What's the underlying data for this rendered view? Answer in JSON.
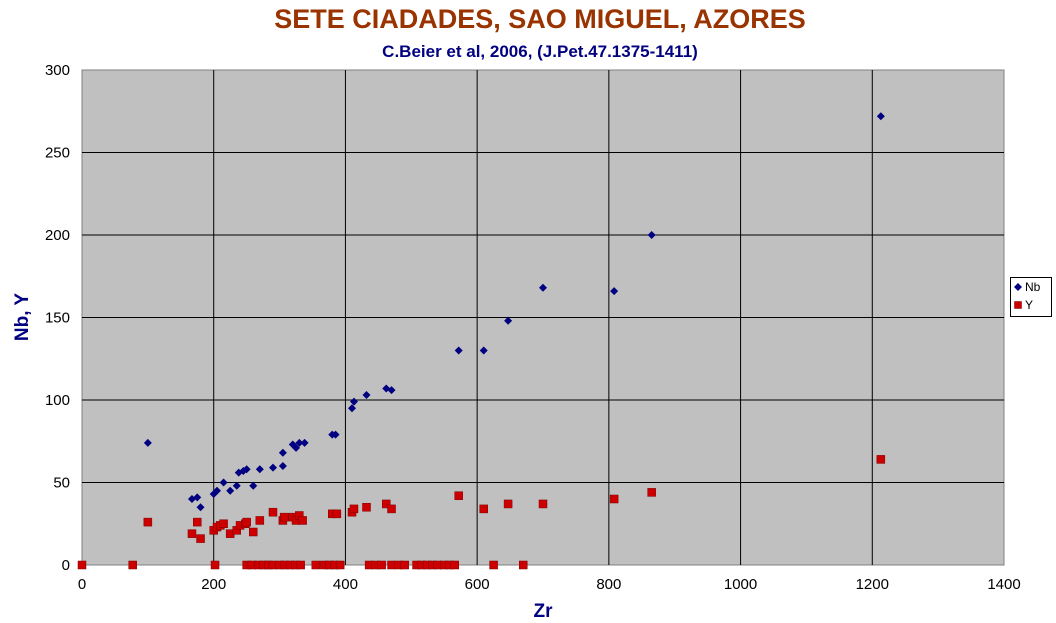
{
  "title": "SETE CIADADES, SAO MIGUEL, AZORES",
  "subtitle": "C.Beier et al, 2006, (J.Pet.47.1375-1411)",
  "chart_data": {
    "type": "scatter",
    "title": "SETE CIADADES, SAO MIGUEL, AZORES",
    "subtitle": "C.Beier et al, 2006, (J.Pet.47.1375-1411)",
    "xlabel": "Zr",
    "ylabel": "Nb, Y",
    "xlim": [
      0,
      1400
    ],
    "ylim": [
      0,
      300
    ],
    "xticks": [
      "0",
      "200",
      "400",
      "600",
      "800",
      "1000",
      "1200",
      "1400"
    ],
    "yticks": [
      "0",
      "50",
      "100",
      "150",
      "200",
      "250",
      "300"
    ],
    "grid": true,
    "legend_position": "right",
    "plot_background": "#c0c0c0",
    "series": [
      {
        "name": "Nb",
        "marker": "diamond",
        "color": "#000080",
        "points": [
          [
            100,
            74
          ],
          [
            167,
            40
          ],
          [
            175,
            41
          ],
          [
            180,
            35
          ],
          [
            200,
            43
          ],
          [
            205,
            45
          ],
          [
            215,
            50
          ],
          [
            225,
            45
          ],
          [
            235,
            48
          ],
          [
            238,
            56
          ],
          [
            245,
            57
          ],
          [
            250,
            58
          ],
          [
            260,
            48
          ],
          [
            270,
            58
          ],
          [
            290,
            59
          ],
          [
            305,
            60
          ],
          [
            305,
            68
          ],
          [
            320,
            73
          ],
          [
            325,
            71
          ],
          [
            330,
            74
          ],
          [
            338,
            74
          ],
          [
            380,
            79
          ],
          [
            385,
            79
          ],
          [
            410,
            95
          ],
          [
            413,
            99
          ],
          [
            432,
            103
          ],
          [
            462,
            107
          ],
          [
            470,
            106
          ],
          [
            572,
            130
          ],
          [
            610,
            130
          ],
          [
            647,
            148
          ],
          [
            700,
            168
          ],
          [
            808,
            166
          ],
          [
            865,
            200
          ],
          [
            1213,
            272
          ]
        ]
      },
      {
        "name": "Y",
        "marker": "square",
        "color": "#cc0000",
        "points": [
          [
            0,
            0
          ],
          [
            77,
            0
          ],
          [
            100,
            26
          ],
          [
            167,
            19
          ],
          [
            175,
            26
          ],
          [
            180,
            16
          ],
          [
            200,
            21
          ],
          [
            205,
            23
          ],
          [
            210,
            24
          ],
          [
            215,
            25
          ],
          [
            225,
            19
          ],
          [
            235,
            21
          ],
          [
            240,
            24
          ],
          [
            248,
            25
          ],
          [
            250,
            26
          ],
          [
            260,
            20
          ],
          [
            270,
            27
          ],
          [
            290,
            32
          ],
          [
            305,
            27
          ],
          [
            307,
            29
          ],
          [
            320,
            29
          ],
          [
            325,
            27
          ],
          [
            330,
            30
          ],
          [
            335,
            27
          ],
          [
            380,
            31
          ],
          [
            387,
            31
          ],
          [
            410,
            32
          ],
          [
            413,
            34
          ],
          [
            432,
            35
          ],
          [
            462,
            37
          ],
          [
            470,
            34
          ],
          [
            572,
            42
          ],
          [
            610,
            34
          ],
          [
            647,
            37
          ],
          [
            700,
            37
          ],
          [
            808,
            40
          ],
          [
            865,
            44
          ],
          [
            1213,
            64
          ],
          [
            202,
            0
          ],
          [
            250,
            0
          ],
          [
            258,
            0
          ],
          [
            268,
            0
          ],
          [
            276,
            0
          ],
          [
            283,
            0
          ],
          [
            290,
            0
          ],
          [
            300,
            0
          ],
          [
            308,
            0
          ],
          [
            316,
            0
          ],
          [
            324,
            0
          ],
          [
            332,
            0
          ],
          [
            355,
            0
          ],
          [
            368,
            0
          ],
          [
            376,
            0
          ],
          [
            384,
            0
          ],
          [
            392,
            0
          ],
          [
            436,
            0
          ],
          [
            446,
            0
          ],
          [
            455,
            0
          ],
          [
            470,
            0
          ],
          [
            481,
            0
          ],
          [
            490,
            0
          ],
          [
            508,
            0
          ],
          [
            516,
            0
          ],
          [
            524,
            0
          ],
          [
            532,
            0
          ],
          [
            540,
            0
          ],
          [
            550,
            0
          ],
          [
            558,
            0
          ],
          [
            566,
            0
          ],
          [
            625,
            0
          ],
          [
            670,
            0
          ]
        ]
      }
    ]
  }
}
